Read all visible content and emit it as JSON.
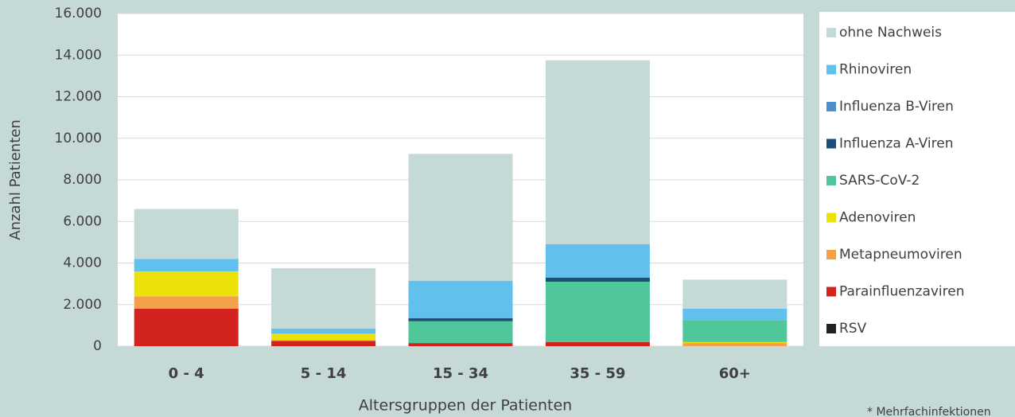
{
  "chart_data": {
    "type": "stacked_bar",
    "x_label": "Altersgruppen der Patienten",
    "y_label": "Anzahl Patienten",
    "footnote": "* Mehrfachinfektionen",
    "categories": [
      "0 - 4",
      "5 - 14",
      "15 - 34",
      "35 - 59",
      "60+"
    ],
    "series": [
      {
        "name": "RSV",
        "color": "#222222",
        "values": [
          0,
          0,
          0,
          0,
          0
        ]
      },
      {
        "name": "Parainfluenzaviren",
        "color": "#d2231f",
        "values": [
          1800,
          250,
          150,
          200,
          0
        ]
      },
      {
        "name": "Metapneumoviren",
        "color": "#f4a04a",
        "values": [
          600,
          50,
          0,
          0,
          150
        ]
      },
      {
        "name": "Adenoviren",
        "color": "#ece20a",
        "values": [
          1200,
          300,
          0,
          0,
          50
        ]
      },
      {
        "name": "SARS-CoV-2",
        "color": "#4fc79b",
        "values": [
          0,
          0,
          1050,
          2900,
          1050
        ]
      },
      {
        "name": "Influenza A-Viren",
        "color": "#1f4e79",
        "values": [
          0,
          0,
          150,
          200,
          0
        ]
      },
      {
        "name": "Influenza B-Viren",
        "color": "#4b90cc",
        "values": [
          0,
          0,
          0,
          0,
          0
        ]
      },
      {
        "name": "Rhinoviren",
        "color": "#62c1ec",
        "values": [
          600,
          250,
          1800,
          1600,
          550
        ]
      },
      {
        "name": "ohne Nachweis",
        "color": "#c5d9d6",
        "values": [
          2400,
          2900,
          6100,
          8850,
          1400
        ]
      }
    ],
    "ylim": [
      0,
      16000
    ],
    "yticks": [
      0,
      {
        "value": 2000,
        "label": "2.000"
      },
      {
        "value": 4000,
        "label": "4.000"
      },
      {
        "value": 6000,
        "label": "6.000"
      },
      {
        "value": 8000,
        "label": "8.000"
      },
      {
        "value": 10000,
        "label": "10.000"
      },
      {
        "value": 12000,
        "label": "12.000"
      },
      {
        "value": 14000,
        "label": "14.000"
      },
      {
        "value": 16000,
        "label": "16.000"
      }
    ],
    "grid": true
  }
}
